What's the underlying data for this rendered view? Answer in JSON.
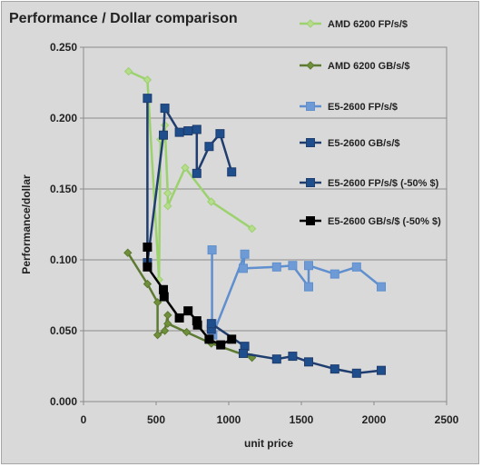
{
  "chart_data": {
    "type": "line",
    "title": "Performance / Dollar comparison",
    "xlabel": "unit price",
    "ylabel": "Performance/dollar",
    "xlim": [
      0,
      2500
    ],
    "ylim": [
      0,
      0.25
    ],
    "x_ticks": [
      "0",
      "500",
      "1000",
      "1500",
      "2000",
      "2500"
    ],
    "y_ticks": [
      "0.000",
      "0.050",
      "0.100",
      "0.150",
      "0.200",
      "0.250"
    ],
    "grid": "horizontal",
    "legend_position": "right",
    "series": [
      {
        "name": "AMD 6200 FP/s/$",
        "color": "#9bd26e",
        "marker": "diamond",
        "marker_fill": "#b7dc8c",
        "points": [
          [
            310,
            0.233
          ],
          [
            440,
            0.227
          ],
          [
            520,
            0.086
          ],
          [
            530,
            0.185
          ],
          [
            560,
            0.195
          ],
          [
            580,
            0.147
          ],
          [
            580,
            0.138
          ],
          [
            700,
            0.165
          ],
          [
            880,
            0.141
          ],
          [
            1160,
            0.122
          ]
        ]
      },
      {
        "name": "AMD 6200 GB/s/$",
        "color": "#5d7a32",
        "marker": "diamond",
        "marker_fill": "#6f8f3a",
        "points": [
          [
            305,
            0.105
          ],
          [
            440,
            0.083
          ],
          [
            510,
            0.07
          ],
          [
            510,
            0.047
          ],
          [
            560,
            0.05
          ],
          [
            580,
            0.061
          ],
          [
            580,
            0.055
          ],
          [
            710,
            0.049
          ],
          [
            880,
            0.041
          ],
          [
            1160,
            0.031
          ]
        ]
      },
      {
        "name": "E5-2600 FP/s/$",
        "color": "#5f8fce",
        "marker": "square",
        "marker_fill": "#6e9bd6",
        "points": [
          [
            885,
            0.107
          ],
          [
            885,
            0.055
          ],
          [
            890,
            0.047
          ],
          [
            1110,
            0.104
          ],
          [
            1100,
            0.094
          ],
          [
            1330,
            0.095
          ],
          [
            1440,
            0.096
          ],
          [
            1550,
            0.081
          ],
          [
            1550,
            0.096
          ],
          [
            1730,
            0.09
          ],
          [
            1880,
            0.095
          ],
          [
            2050,
            0.081
          ]
        ]
      },
      {
        "name": "E5-2600 GB/s/$",
        "color": "#1f3d6e",
        "marker": "square",
        "marker_fill": "#1f4e8c",
        "points": [
          [
            880,
            0.051
          ],
          [
            880,
            0.055
          ],
          [
            1110,
            0.039
          ],
          [
            1100,
            0.034
          ],
          [
            1330,
            0.03
          ],
          [
            1440,
            0.032
          ],
          [
            1550,
            0.028
          ],
          [
            1730,
            0.023
          ],
          [
            1880,
            0.02
          ],
          [
            2050,
            0.022
          ]
        ]
      },
      {
        "name": "E5-2600 FP/s/$ (-50% $)",
        "color": "#1f3d6e",
        "marker": "square",
        "marker_fill": "#1f4e8c",
        "points": [
          [
            440,
            0.214
          ],
          [
            440,
            0.098
          ],
          [
            550,
            0.188
          ],
          [
            560,
            0.207
          ],
          [
            660,
            0.19
          ],
          [
            720,
            0.191
          ],
          [
            780,
            0.192
          ],
          [
            780,
            0.161
          ],
          [
            865,
            0.18
          ],
          [
            940,
            0.189
          ],
          [
            1020,
            0.162
          ]
        ]
      },
      {
        "name": "E5-2600 GB/s/$ (-50% $)",
        "color": "#000000",
        "marker": "square",
        "marker_fill": "#000000",
        "points": [
          [
            440,
            0.109
          ],
          [
            440,
            0.095
          ],
          [
            550,
            0.079
          ],
          [
            555,
            0.074
          ],
          [
            660,
            0.059
          ],
          [
            720,
            0.064
          ],
          [
            780,
            0.057
          ],
          [
            785,
            0.054
          ],
          [
            865,
            0.044
          ],
          [
            945,
            0.04
          ],
          [
            1020,
            0.044
          ]
        ]
      }
    ]
  }
}
